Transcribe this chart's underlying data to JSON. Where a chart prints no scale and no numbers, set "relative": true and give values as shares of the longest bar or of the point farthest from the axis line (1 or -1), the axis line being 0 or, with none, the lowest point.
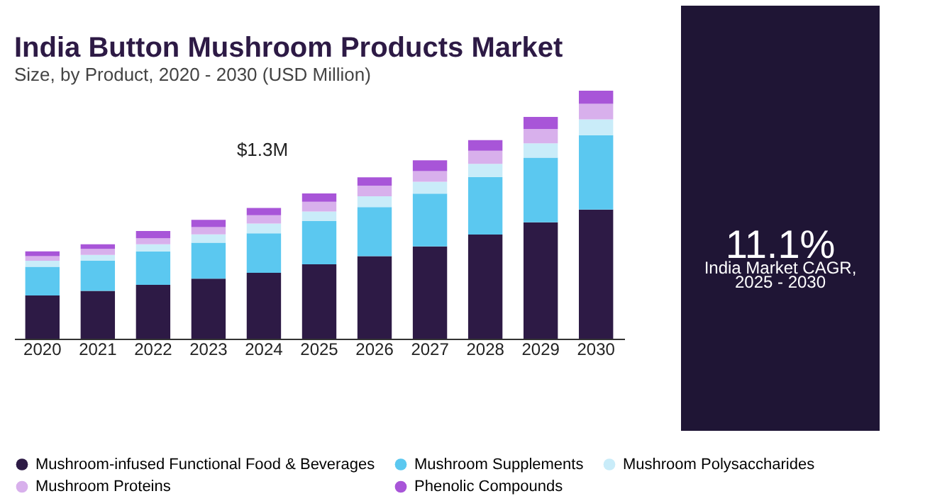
{
  "chart_data": [
    {
      "type": "bar",
      "title": "India Button Mushroom Products Market",
      "subtitle": "Size, by Product, 2020 - 2030 (USD Million)",
      "relative": true,
      "stacked": true,
      "legend": "bottom",
      "categories": [
        "2020",
        "2021",
        "2022",
        "2023",
        "2024",
        "2025",
        "2026",
        "2027",
        "2028",
        "2029",
        "2030"
      ],
      "series": [
        {
          "name": "Mushroom-infused Functional Food & Beverages",
          "color": "#2d1a45",
          "values": [
            0.174,
            0.193,
            0.217,
            0.242,
            0.266,
            0.3,
            0.333,
            0.372,
            0.42,
            0.469,
            0.521
          ]
        },
        {
          "name": "Mushroom Supplements",
          "color": "#5bc8f0",
          "values": [
            0.116,
            0.121,
            0.135,
            0.145,
            0.159,
            0.174,
            0.198,
            0.213,
            0.232,
            0.261,
            0.3
          ]
        },
        {
          "name": "Mushroom Polysaccharides",
          "color": "#c9ecf9",
          "values": [
            0.024,
            0.024,
            0.029,
            0.034,
            0.039,
            0.039,
            0.043,
            0.048,
            0.053,
            0.058,
            0.063
          ]
        },
        {
          "name": "Mushroom Proteins",
          "color": "#d8b0ec",
          "values": [
            0.019,
            0.024,
            0.024,
            0.029,
            0.034,
            0.039,
            0.043,
            0.043,
            0.053,
            0.058,
            0.063
          ]
        },
        {
          "name": "Phenolic Compounds",
          "color": "#a855d8",
          "values": [
            0.019,
            0.019,
            0.029,
            0.029,
            0.029,
            0.034,
            0.034,
            0.043,
            0.043,
            0.048,
            0.053
          ]
        }
      ],
      "annotations": [
        "$1.3M"
      ]
    },
    {
      "type": "other",
      "annotations": [
        "11.1%",
        "India Market CAGR,",
        "2025 - 2030"
      ]
    }
  ]
}
